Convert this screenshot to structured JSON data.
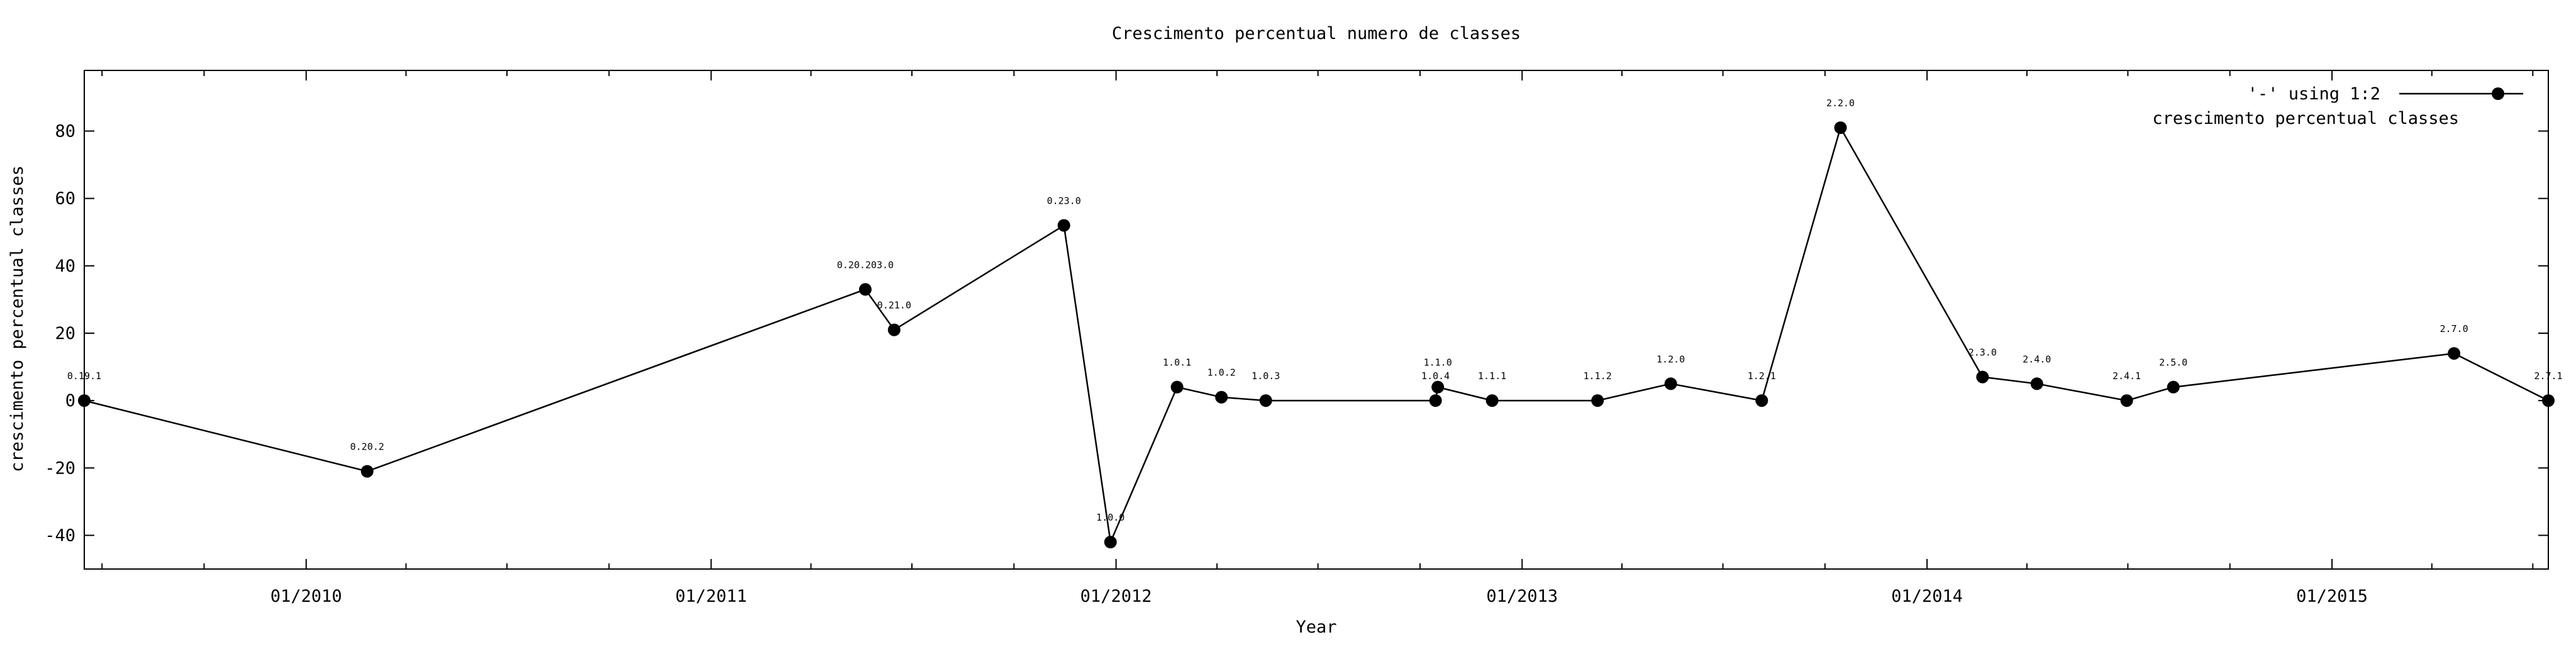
{
  "chart_data": {
    "type": "line",
    "title": "Crescimento percentual numero de classes",
    "xlabel": "Year",
    "ylabel": "crescimento percentual classes",
    "x_axis_type": "date",
    "xlim": [
      "2009-06-15",
      "2015-07-15"
    ],
    "ylim": [
      -50,
      98
    ],
    "y_ticks": [
      -40,
      -20,
      0,
      20,
      40,
      60,
      80
    ],
    "x_ticks": [
      {
        "date": "2010-01-01",
        "label": "01/2010"
      },
      {
        "date": "2011-01-01",
        "label": "01/2011"
      },
      {
        "date": "2012-01-01",
        "label": "01/2012"
      },
      {
        "date": "2013-01-01",
        "label": "01/2013"
      },
      {
        "date": "2014-01-01",
        "label": "01/2014"
      },
      {
        "date": "2015-01-01",
        "label": "01/2015"
      }
    ],
    "grid": false,
    "legend": {
      "position": "top-right",
      "entries": [
        "'-' using 1:2",
        "crescimento percentual classes"
      ]
    },
    "series": [
      {
        "name": "'-' using 1:2",
        "color": "#000000",
        "points": [
          {
            "x": "2009-06-15",
            "y": 0,
            "label": "0.19.1"
          },
          {
            "x": "2010-02-25",
            "y": -21,
            "label": "0.20.2"
          },
          {
            "x": "2011-05-20",
            "y": 33,
            "label": "0.20.203.0"
          },
          {
            "x": "2011-06-15",
            "y": 21,
            "label": "0.21.0"
          },
          {
            "x": "2011-11-15",
            "y": 52,
            "label": "0.23.0"
          },
          {
            "x": "2011-12-27",
            "y": -42,
            "label": "1.0.0"
          },
          {
            "x": "2012-02-25",
            "y": 4,
            "label": "1.0.1"
          },
          {
            "x": "2012-04-05",
            "y": 1,
            "label": "1.0.2"
          },
          {
            "x": "2012-05-15",
            "y": 0,
            "label": "1.0.3"
          },
          {
            "x": "2012-10-15",
            "y": 0,
            "label": "1.0.4"
          },
          {
            "x": "2012-10-17",
            "y": 4,
            "label": "1.1.0"
          },
          {
            "x": "2012-12-05",
            "y": 0,
            "label": "1.1.1"
          },
          {
            "x": "2013-03-10",
            "y": 0,
            "label": "1.1.2"
          },
          {
            "x": "2013-05-15",
            "y": 5,
            "label": "1.2.0"
          },
          {
            "x": "2013-08-05",
            "y": 0,
            "label": "1.2.1"
          },
          {
            "x": "2013-10-15",
            "y": 81,
            "label": "2.2.0"
          },
          {
            "x": "2014-02-20",
            "y": 7,
            "label": "2.3.0"
          },
          {
            "x": "2014-04-10",
            "y": 5,
            "label": "2.4.0"
          },
          {
            "x": "2014-06-30",
            "y": 0,
            "label": "2.4.1"
          },
          {
            "x": "2014-08-11",
            "y": 4,
            "label": "2.5.0"
          },
          {
            "x": "2015-04-21",
            "y": 14,
            "label": "2.7.0"
          },
          {
            "x": "2015-07-15",
            "y": 0,
            "label": "2.7.1"
          }
        ]
      }
    ]
  }
}
